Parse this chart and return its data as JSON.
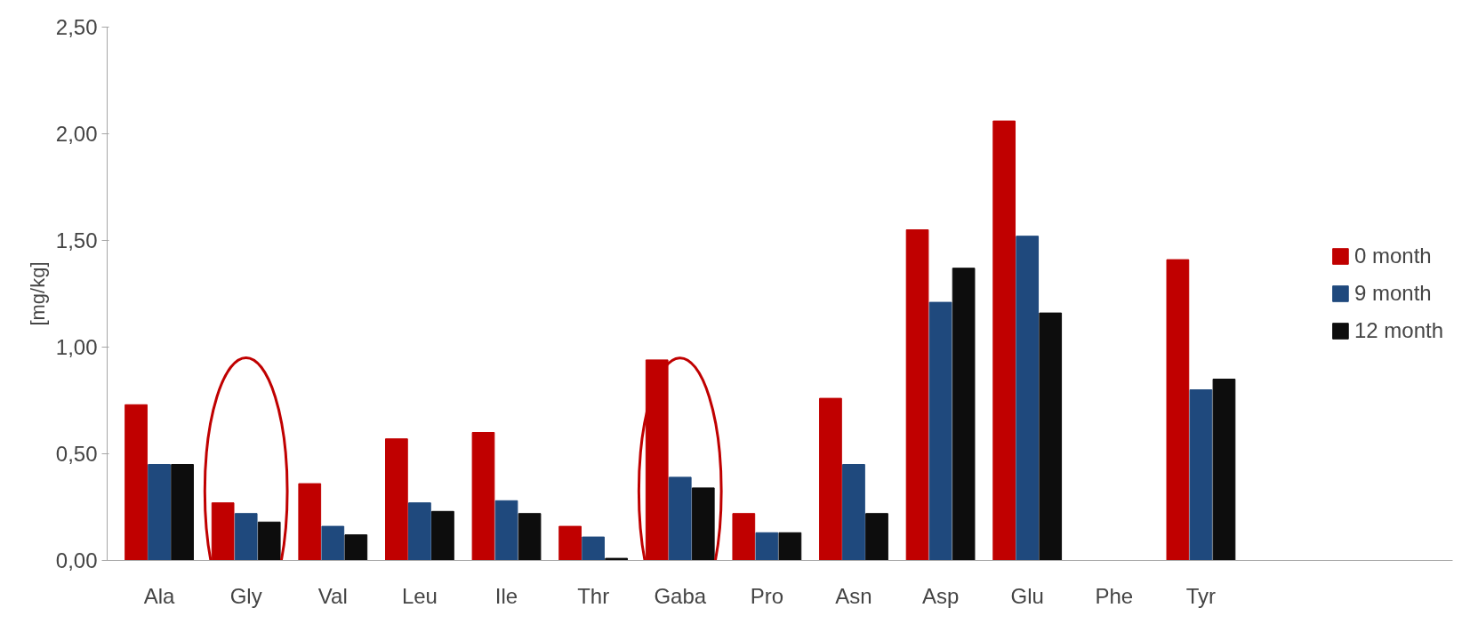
{
  "chart_data": {
    "type": "bar",
    "ylabel": "[mg/kg]",
    "categories": [
      "Ala",
      "Gly",
      "Val",
      "Leu",
      "Ile",
      "Thr",
      "Gaba",
      "Pro",
      "Asn",
      "Asp",
      "Glu",
      "Phe",
      "Tyr"
    ],
    "series": [
      {
        "name": "0 month",
        "color": "#c00000",
        "values": [
          0.73,
          0.27,
          0.36,
          0.57,
          0.6,
          0.16,
          0.94,
          0.22,
          0.76,
          1.55,
          2.06,
          0.0,
          1.41
        ]
      },
      {
        "name": "9 month",
        "color": "#1f497d",
        "values": [
          0.45,
          0.22,
          0.16,
          0.27,
          0.28,
          0.11,
          0.39,
          0.13,
          0.45,
          1.21,
          1.52,
          0.0,
          0.8
        ]
      },
      {
        "name": "12 month",
        "color": "#0d0d0d",
        "values": [
          0.45,
          0.18,
          0.12,
          0.23,
          0.22,
          0.01,
          0.34,
          0.13,
          0.22,
          1.37,
          1.16,
          0.0,
          0.85
        ]
      }
    ],
    "ylim": [
      0,
      2.5
    ],
    "yticks": [
      {
        "value": 0,
        "label": "0,00"
      },
      {
        "value": 0.5,
        "label": "0,50"
      },
      {
        "value": 1.0,
        "label": "1,00"
      },
      {
        "value": 1.5,
        "label": "1,50"
      },
      {
        "value": 2.0,
        "label": "2,00"
      },
      {
        "value": 2.5,
        "label": "2,50"
      }
    ],
    "grid": false,
    "legend": "right"
  }
}
